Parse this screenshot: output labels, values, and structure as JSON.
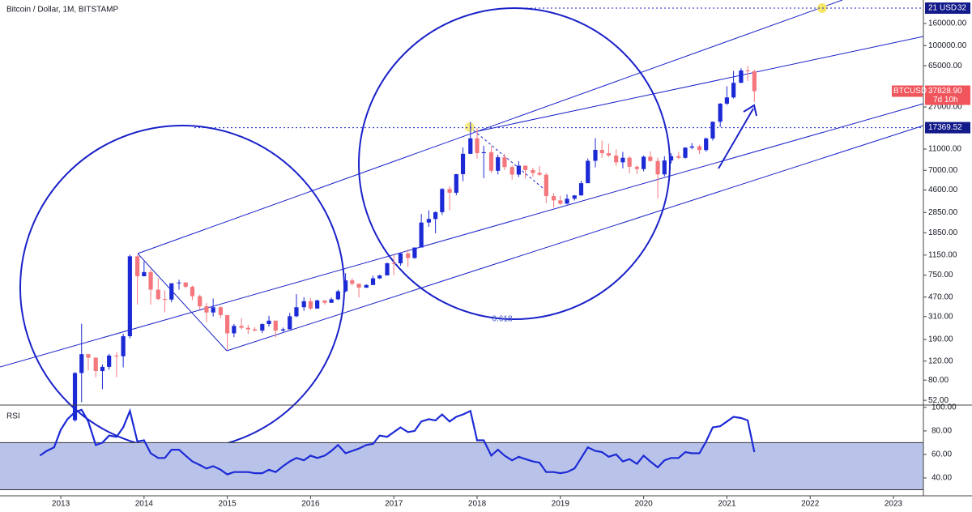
{
  "chart_data": {
    "type": "candlestick",
    "title": "Bitcoin / Dollar, 1M, BITSTAMP",
    "log_scale": true,
    "up_color": "#1c2ad6",
    "down_color": "#f4777d",
    "x": [
      2012.75,
      2012.83,
      2012.92,
      2013,
      2013.08,
      2013.17,
      2013.25,
      2013.33,
      2013.42,
      2013.5,
      2013.58,
      2013.67,
      2013.75,
      2013.83,
      2013.92,
      2014,
      2014.08,
      2014.17,
      2014.25,
      2014.33,
      2014.42,
      2014.5,
      2014.58,
      2014.67,
      2014.75,
      2014.83,
      2014.92,
      2015,
      2015.08,
      2015.17,
      2015.25,
      2015.33,
      2015.42,
      2015.5,
      2015.58,
      2015.67,
      2015.75,
      2015.83,
      2015.92,
      2016,
      2016.08,
      2016.17,
      2016.25,
      2016.33,
      2016.42,
      2016.5,
      2016.58,
      2016.67,
      2016.75,
      2016.83,
      2016.92,
      2017,
      2017.08,
      2017.17,
      2017.25,
      2017.33,
      2017.42,
      2017.5,
      2017.58,
      2017.67,
      2017.75,
      2017.83,
      2017.92,
      2018,
      2018.08,
      2018.17,
      2018.25,
      2018.33,
      2018.42,
      2018.5,
      2018.58,
      2018.67,
      2018.75,
      2018.83,
      2018.92,
      2019,
      2019.08,
      2019.17,
      2019.25,
      2019.33,
      2019.42,
      2019.5,
      2019.58,
      2019.67,
      2019.75,
      2019.83,
      2019.92,
      2020,
      2020.08,
      2020.17,
      2020.25,
      2020.33,
      2020.42,
      2020.5,
      2020.58,
      2020.67,
      2020.75,
      2020.83,
      2020.92,
      2021,
      2021.08,
      2021.17,
      2021.25,
      2021.33
    ],
    "open": [
      null,
      null,
      null,
      null,
      null,
      34,
      93,
      139,
      129,
      97,
      106,
      135,
      133,
      204,
      1120,
      732,
      800,
      550,
      450,
      445,
      630,
      640,
      585,
      478,
      386,
      338,
      378,
      320,
      217,
      254,
      244,
      236,
      230,
      264,
      284,
      230,
      236,
      312,
      378,
      430,
      368,
      437,
      416,
      448,
      531,
      670,
      624,
      574,
      608,
      700,
      745,
      966,
      965,
      1190,
      1080,
      1350,
      2300,
      2480,
      2870,
      4700,
      4340,
      6450,
      9950,
      13850,
      10100,
      10300,
      6930,
      9240,
      7500,
      6390,
      7730,
      7030,
      6630,
      6370,
      4040,
      3690,
      3440,
      3820,
      4100,
      5320,
      8570,
      10820,
      10080,
      9590,
      8300,
      9150,
      7550,
      7190,
      9350,
      8540,
      6420,
      8630,
      9450,
      9140,
      11350,
      11650,
      10780,
      13800,
      19700,
      28990,
      33110,
      45160,
      58800,
      57750
    ],
    "high": [
      null,
      null,
      null,
      null,
      null,
      95,
      266,
      140,
      130,
      112,
      140,
      145,
      215,
      1163,
      1150,
      1000,
      850,
      700,
      540,
      630,
      680,
      650,
      600,
      495,
      415,
      455,
      385,
      320,
      265,
      300,
      260,
      248,
      268,
      315,
      285,
      245,
      335,
      500,
      468,
      460,
      445,
      440,
      465,
      550,
      780,
      705,
      625,
      615,
      740,
      755,
      980,
      1150,
      1210,
      1300,
      1350,
      2760,
      2980,
      2920,
      4800,
      5000,
      6470,
      11400,
      19670,
      17200,
      11800,
      11700,
      9760,
      9990,
      7780,
      8500,
      7760,
      7400,
      7680,
      6620,
      4320,
      4070,
      4200,
      4130,
      5600,
      9000,
      13880,
      13200,
      12330,
      10950,
      10370,
      9500,
      7750,
      9580,
      10500,
      9200,
      9450,
      10070,
      10380,
      11450,
      12490,
      12080,
      14100,
      19800,
      29300,
      41950,
      58350,
      61780,
      64900,
      59600
    ],
    "low": [
      null,
      null,
      null,
      null,
      null,
      33,
      50,
      98,
      85,
      66,
      100,
      85,
      105,
      195,
      400,
      730,
      400,
      440,
      340,
      420,
      550,
      565,
      440,
      360,
      275,
      310,
      300,
      152,
      200,
      235,
      214,
      225,
      218,
      250,
      198,
      225,
      236,
      305,
      350,
      355,
      366,
      400,
      414,
      440,
      520,
      600,
      465,
      570,
      605,
      690,
      745,
      750,
      915,
      890,
      1060,
      1350,
      2100,
      1830,
      2700,
      2980,
      4110,
      5550,
      9900,
      9000,
      5920,
      6600,
      6420,
      7030,
      5750,
      6060,
      5880,
      6100,
      6200,
      3480,
      3150,
      3350,
      3380,
      3680,
      4080,
      5320,
      7450,
      9100,
      9350,
      7730,
      7300,
      6550,
      6430,
      6850,
      8450,
      3850,
      6150,
      8100,
      8900,
      8970,
      10980,
      9880,
      10370,
      13200,
      17600,
      28150,
      32300,
      45000,
      47000,
      30000
    ],
    "close": [
      null,
      null,
      null,
      null,
      null,
      93,
      139,
      129,
      97,
      106,
      135,
      133,
      204,
      1120,
      732,
      800,
      550,
      450,
      445,
      630,
      640,
      585,
      478,
      386,
      338,
      378,
      320,
      217,
      254,
      244,
      236,
      230,
      264,
      284,
      230,
      236,
      312,
      378,
      430,
      368,
      437,
      416,
      448,
      531,
      670,
      624,
      574,
      608,
      700,
      745,
      966,
      965,
      1190,
      1080,
      1350,
      2300,
      2480,
      2870,
      4700,
      4340,
      6450,
      9950,
      13850,
      10100,
      10300,
      6930,
      9240,
      7500,
      6390,
      7730,
      7030,
      6630,
      6370,
      4040,
      3690,
      3440,
      3820,
      4100,
      5320,
      8570,
      10820,
      10080,
      9590,
      8300,
      9150,
      7550,
      7190,
      9350,
      8540,
      6420,
      8630,
      9450,
      9140,
      11350,
      11650,
      10780,
      13800,
      19700,
      28990,
      33110,
      45160,
      58800,
      57750,
      37828.9
    ],
    "xlim": [
      2012.27,
      2023.36
    ],
    "xticks": [
      2013,
      2014,
      2015,
      2016,
      2017,
      2018,
      2019,
      2020,
      2021,
      2022,
      2023
    ],
    "ylim": [
      47,
      264000
    ],
    "yticks": [
      {
        "value": 52,
        "label": "52.00"
      },
      {
        "value": 80,
        "label": "80.00"
      },
      {
        "value": 120,
        "label": "120.00"
      },
      {
        "value": 190,
        "label": "190.00"
      },
      {
        "value": 310,
        "label": "310.00"
      },
      {
        "value": 470,
        "label": "470.00"
      },
      {
        "value": 750,
        "label": "750.00"
      },
      {
        "value": 1150,
        "label": "1150.00"
      },
      {
        "value": 1850,
        "label": "1850.00"
      },
      {
        "value": 2850,
        "label": "2850.00"
      },
      {
        "value": 4600,
        "label": "4600.00"
      },
      {
        "value": 7000,
        "label": "7000.00"
      },
      {
        "value": 11000,
        "label": "11000.00"
      },
      {
        "value": 27000,
        "label": "27000.00"
      },
      {
        "value": 65000,
        "label": "65000.00"
      },
      {
        "value": 100000,
        "label": "100000.00"
      },
      {
        "value": 160000,
        "label": "160000.00"
      }
    ],
    "level": 17369.52,
    "top_level": {
      "value": 222000,
      "texts": [
        "21",
        "USD",
        "32"
      ]
    },
    "last_price": {
      "value": 37828.9,
      "label": "37828.90",
      "symbol": "BTCUSD",
      "countdown": "7d 10h"
    },
    "fib_label": "0.618",
    "rsi": {
      "type": "line",
      "name": "RSI",
      "color": "#1c2ad6",
      "band": [
        30,
        70
      ],
      "band_color": "#b9c3e9",
      "values": [
        59,
        63,
        66,
        81,
        90,
        96,
        98,
        88,
        68,
        70,
        76,
        75,
        83,
        97,
        71,
        72,
        61,
        57,
        57,
        64,
        64,
        59,
        54,
        51,
        48,
        50,
        47,
        43,
        45,
        45,
        45,
        44,
        44,
        47,
        45,
        50,
        54,
        57,
        55,
        59,
        57,
        59,
        63,
        68,
        61,
        63,
        65,
        68,
        69,
        76,
        75,
        79,
        83,
        79,
        80,
        88,
        90,
        89,
        94,
        88,
        92,
        94,
        97,
        72,
        72,
        59,
        64,
        59,
        55,
        58,
        56,
        54,
        53,
        45,
        45,
        44,
        45,
        48,
        57,
        66,
        63,
        62,
        58,
        60,
        54,
        56,
        52,
        59,
        54,
        49,
        55,
        57,
        57,
        62,
        61,
        61,
        71,
        83,
        84,
        88,
        92,
        91,
        89,
        62
      ],
      "ylim": [
        24.8,
        102
      ],
      "yticks": [
        {
          "value": 40,
          "label": "40.00"
        },
        {
          "value": 60,
          "label": "60.00"
        },
        {
          "value": 80,
          "label": "80.00"
        },
        {
          "value": 100,
          "label": "100.00"
        }
      ]
    }
  }
}
